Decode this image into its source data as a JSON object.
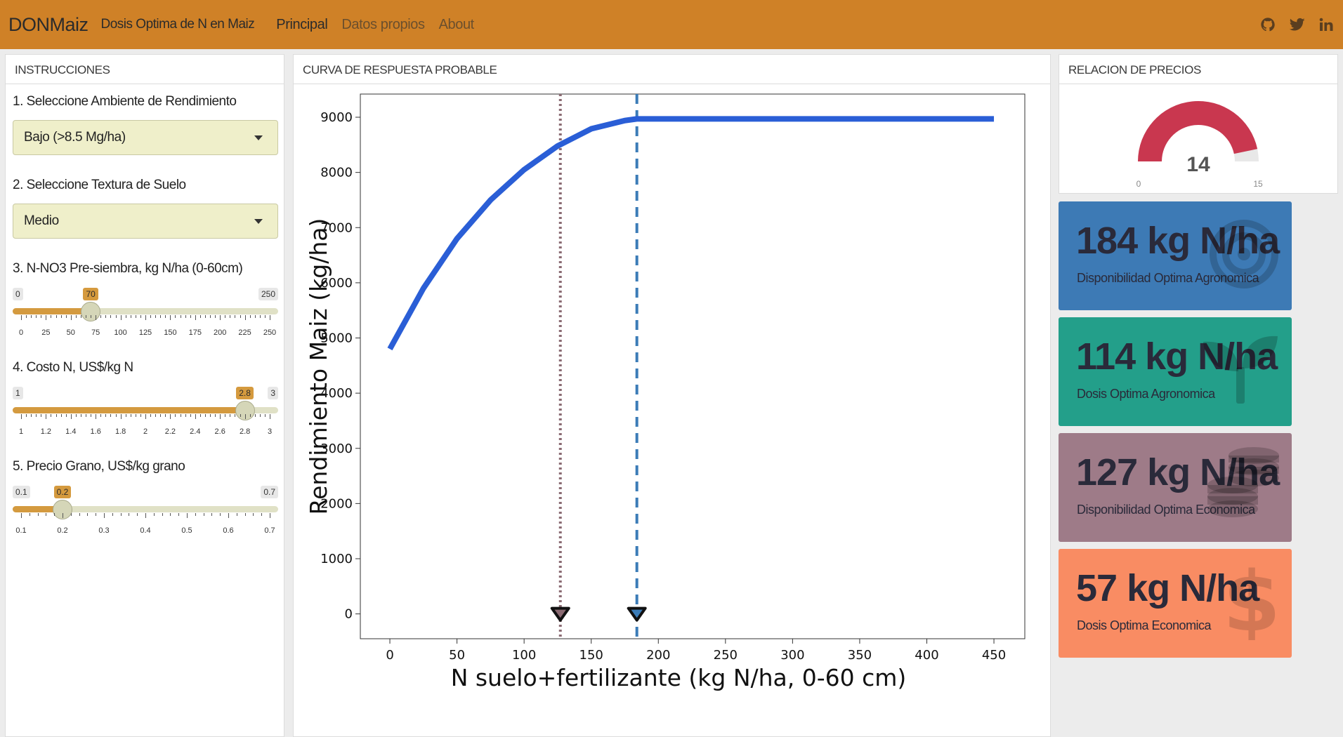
{
  "navbar": {
    "brand": "DONMaiz",
    "subtitle": "Dosis Optima de N en Maiz",
    "links": [
      "Principal",
      "Datos propios",
      "About"
    ],
    "icons": [
      "github-icon",
      "twitter-icon",
      "linkedin-icon"
    ],
    "color": "#cf8127"
  },
  "left_panel": {
    "title": "INSTRUCCIONES",
    "step1_label": "1. Seleccione Ambiente de Rendimiento",
    "step1_value": "Bajo (>8.5 Mg/ha)",
    "step2_label": "2. Seleccione Textura de Suelo",
    "step2_value": "Medio",
    "step3_label": "3. N-NO3 Pre-siembra, kg N/ha (0-60cm)",
    "step3": {
      "min": "0",
      "max": "250",
      "value": "70",
      "ticks": [
        "0",
        "25",
        "50",
        "75",
        "100",
        "125",
        "150",
        "175",
        "200",
        "225",
        "250"
      ]
    },
    "step4_label": "4. Costo N, US$/kg N",
    "step4": {
      "min": "1",
      "max": "3",
      "value": "2.8",
      "ticks": [
        "1",
        "1.2",
        "1.4",
        "1.6",
        "1.8",
        "2",
        "2.2",
        "2.4",
        "2.6",
        "2.8",
        "3"
      ]
    },
    "step5_label": "5. Precio Grano, US$/kg grano",
    "step5": {
      "min": "0.1",
      "max": "0.7",
      "value": "0.2",
      "ticks": [
        "0.1",
        "0.2",
        "0.3",
        "0.4",
        "0.5",
        "0.6",
        "0.7"
      ]
    }
  },
  "center_panel": {
    "title": "CURVA DE RESPUESTA PROBABLE"
  },
  "chart_data": {
    "type": "line",
    "xlabel": "N suelo+fertilizante (kg N/ha, 0-60 cm)",
    "ylabel": "Rendimiento Maiz (kg/ha)",
    "xlim": [
      -22,
      473
    ],
    "ylim": [
      -450,
      9420
    ],
    "xticks": [
      0,
      50,
      100,
      150,
      200,
      250,
      300,
      350,
      400,
      450
    ],
    "yticks": [
      0,
      1000,
      2000,
      3000,
      4000,
      5000,
      6000,
      7000,
      8000,
      9000
    ],
    "series": [
      {
        "color": "#2a5ed6",
        "x": [
          0,
          25,
          50,
          75,
          100,
          125,
          150,
          175,
          184,
          200,
          250,
          300,
          350,
          400,
          450
        ],
        "y": [
          4800,
          5900,
          6800,
          7500,
          8050,
          8480,
          8790,
          8940,
          8970,
          8970,
          8970,
          8970,
          8970,
          8970,
          8970
        ]
      }
    ],
    "vlines": [
      {
        "x": 127,
        "style": "dotted",
        "color": "#8a6a72"
      },
      {
        "x": 184,
        "style": "dashed",
        "color": "#3b7cb7"
      }
    ],
    "markers": [
      {
        "x": 127,
        "color": "#8a6a72"
      },
      {
        "x": 184,
        "color": "#3b7cb7"
      }
    ],
    "grid": false
  },
  "right_panel": {
    "title": "RELACION DE PRECIOS",
    "gauge": {
      "value": "14",
      "min": "0",
      "max": "15",
      "fraction": 0.9333,
      "color": "#c9374f"
    },
    "boxes": [
      {
        "value": "184 kg N/ha",
        "label": "Disponibilidad Optima Agronomica",
        "color": "#3d7ab5",
        "icon": "bullseye-icon"
      },
      {
        "value": "114 kg N/ha",
        "label": "Dosis Optima Agronomica",
        "color": "#239f8a",
        "icon": "seedling-icon"
      },
      {
        "value": "127 kg N/ha",
        "label": "Disponibilidad Optima Economica",
        "color": "#9e7b88",
        "icon": "coins-icon"
      },
      {
        "value": "57 kg N/ha",
        "label": "Dosis Optima Economica",
        "color": "#f98c63",
        "icon": "dollar-icon"
      }
    ]
  }
}
